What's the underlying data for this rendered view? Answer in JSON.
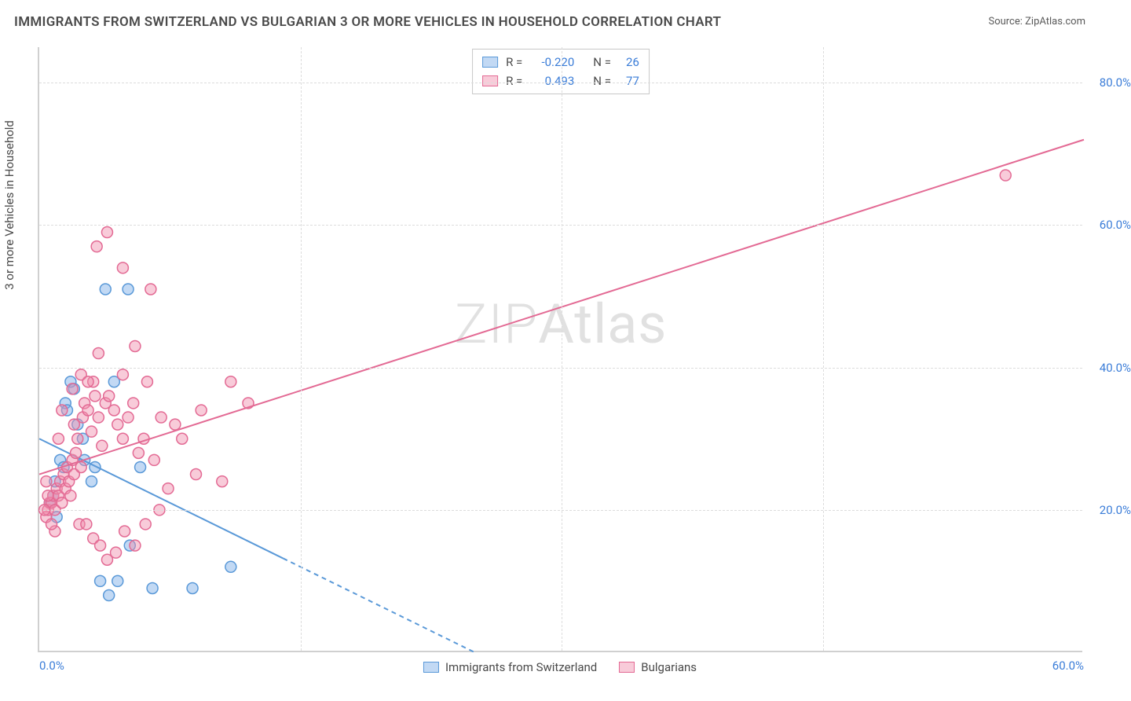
{
  "title": "IMMIGRANTS FROM SWITZERLAND VS BULGARIAN 3 OR MORE VEHICLES IN HOUSEHOLD CORRELATION CHART",
  "source_prefix": "Source: ",
  "source_name": "ZipAtlas.com",
  "ylabel": "3 or more Vehicles in Household",
  "watermark_a": "ZIP",
  "watermark_b": "Atlas",
  "chart": {
    "type": "scatter",
    "xlim": [
      0,
      60
    ],
    "ylim": [
      0,
      85
    ],
    "xtick_positions": [
      0,
      60
    ],
    "xtick_labels": [
      "0.0%",
      "60.0%"
    ],
    "ytick_positions": [
      20,
      40,
      60,
      80
    ],
    "ytick_labels": [
      "20.0%",
      "40.0%",
      "60.0%",
      "80.0%"
    ],
    "grid_color": "#dcdcdc",
    "axis_color": "#d0d0d0",
    "background_color": "#ffffff",
    "tick_font_color": "#3b7dd8",
    "tick_font_size": 15,
    "marker_radius": 7,
    "marker_stroke_width": 1.5,
    "line_width": 2,
    "series": [
      {
        "name": "Immigrants from Switzerland",
        "color_fill": "rgba(120,170,230,0.45)",
        "color_stroke": "#5a99d8",
        "r_label": "R = ",
        "r_value": "-0.220",
        "n_label": "N = ",
        "n_value": "26",
        "trend": {
          "x1": 0,
          "y1": 30,
          "x2": 25,
          "y2": 0,
          "solid_until_x": 14
        },
        "points": [
          [
            0.6,
            21
          ],
          [
            0.8,
            22
          ],
          [
            0.9,
            24
          ],
          [
            1.0,
            19
          ],
          [
            1.2,
            27
          ],
          [
            1.4,
            26
          ],
          [
            1.5,
            35
          ],
          [
            1.6,
            34
          ],
          [
            1.8,
            38
          ],
          [
            2.0,
            37
          ],
          [
            2.2,
            32
          ],
          [
            2.5,
            30
          ],
          [
            2.6,
            27
          ],
          [
            3.0,
            24
          ],
          [
            3.2,
            26
          ],
          [
            3.8,
            51
          ],
          [
            4.3,
            38
          ],
          [
            5.1,
            51
          ],
          [
            5.2,
            15
          ],
          [
            5.8,
            26
          ],
          [
            3.5,
            10
          ],
          [
            4.0,
            8
          ],
          [
            4.5,
            10
          ],
          [
            6.5,
            9
          ],
          [
            8.8,
            9
          ],
          [
            11.0,
            12
          ]
        ]
      },
      {
        "name": "Bulgarians",
        "color_fill": "rgba(240,140,170,0.45)",
        "color_stroke": "#e36a94",
        "r_label": "R = ",
        "r_value": "0.493",
        "n_label": "N = ",
        "n_value": "77",
        "trend": {
          "x1": 0,
          "y1": 25,
          "x2": 60,
          "y2": 72,
          "solid_until_x": 60
        },
        "points": [
          [
            0.4,
            19
          ],
          [
            0.5,
            20
          ],
          [
            0.6,
            21
          ],
          [
            0.7,
            21
          ],
          [
            0.8,
            22
          ],
          [
            0.9,
            20
          ],
          [
            1.0,
            23
          ],
          [
            1.1,
            22
          ],
          [
            1.2,
            24
          ],
          [
            1.3,
            21
          ],
          [
            1.4,
            25
          ],
          [
            1.5,
            23
          ],
          [
            1.6,
            26
          ],
          [
            1.7,
            24
          ],
          [
            1.8,
            22
          ],
          [
            1.9,
            27
          ],
          [
            2.0,
            25
          ],
          [
            2.1,
            28
          ],
          [
            2.2,
            30
          ],
          [
            2.4,
            26
          ],
          [
            2.5,
            33
          ],
          [
            2.6,
            35
          ],
          [
            2.8,
            34
          ],
          [
            3.0,
            31
          ],
          [
            3.2,
            36
          ],
          [
            3.4,
            33
          ],
          [
            3.6,
            29
          ],
          [
            3.8,
            35
          ],
          [
            4.0,
            36
          ],
          [
            4.3,
            34
          ],
          [
            4.5,
            32
          ],
          [
            4.8,
            30
          ],
          [
            5.1,
            33
          ],
          [
            5.4,
            35
          ],
          [
            5.7,
            28
          ],
          [
            6.0,
            30
          ],
          [
            6.2,
            38
          ],
          [
            6.6,
            27
          ],
          [
            7.0,
            33
          ],
          [
            7.4,
            23
          ],
          [
            7.8,
            32
          ],
          [
            8.2,
            30
          ],
          [
            9.0,
            25
          ],
          [
            9.3,
            34
          ],
          [
            10.5,
            24
          ],
          [
            11.0,
            38
          ],
          [
            5.5,
            43
          ],
          [
            6.4,
            51
          ],
          [
            4.8,
            39
          ],
          [
            3.1,
            38
          ],
          [
            2.4,
            39
          ],
          [
            1.9,
            37
          ],
          [
            1.3,
            34
          ],
          [
            3.3,
            57
          ],
          [
            3.9,
            59
          ],
          [
            4.8,
            54
          ],
          [
            2.3,
            18
          ],
          [
            2.7,
            18
          ],
          [
            3.1,
            16
          ],
          [
            3.5,
            15
          ],
          [
            3.9,
            13
          ],
          [
            4.4,
            14
          ],
          [
            4.9,
            17
          ],
          [
            5.5,
            15
          ],
          [
            6.1,
            18
          ],
          [
            6.9,
            20
          ],
          [
            0.9,
            17
          ],
          [
            0.7,
            18
          ],
          [
            0.5,
            22
          ],
          [
            0.3,
            20
          ],
          [
            0.4,
            24
          ],
          [
            1.1,
            30
          ],
          [
            2.0,
            32
          ],
          [
            2.8,
            38
          ],
          [
            3.4,
            42
          ],
          [
            55.5,
            67
          ],
          [
            12.0,
            35
          ]
        ]
      }
    ],
    "legend_top": {
      "visible": true
    },
    "legend_bottom": {
      "visible": true
    }
  }
}
